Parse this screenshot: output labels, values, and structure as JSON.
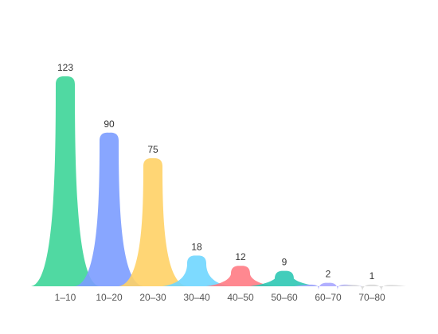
{
  "chart_data": {
    "type": "area",
    "categories": [
      "1–10",
      "10–20",
      "20–30",
      "30–40",
      "40–50",
      "50–60",
      "60–70",
      "70–80"
    ],
    "values": [
      123,
      90,
      75,
      18,
      12,
      9,
      2,
      1
    ],
    "colors": [
      "#3dd598",
      "#7b9cff",
      "#ffd166",
      "#6fd6ff",
      "#ff7b84",
      "#2ec8b4",
      "#a9a6ff",
      "#d8d8d8"
    ],
    "ylim": [
      0,
      123
    ],
    "grid": false,
    "legend": "none"
  }
}
